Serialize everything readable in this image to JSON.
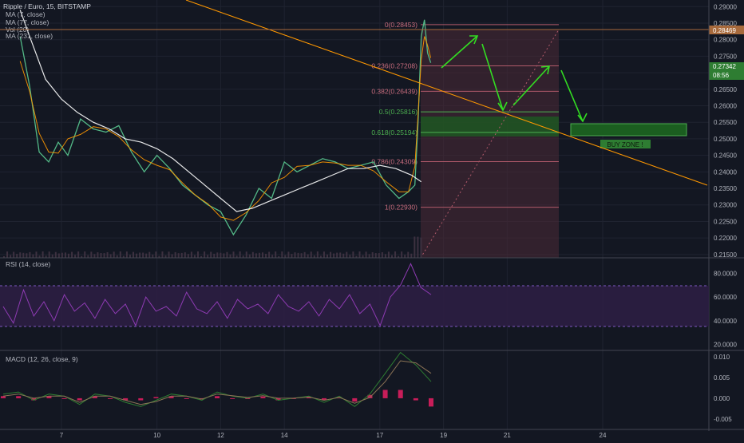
{
  "colors": {
    "bg": "#131722",
    "grid": "#2a2e39",
    "text": "#b2b5be",
    "candle_up": "#53b987",
    "candle_down": "#eb4d5c",
    "ma7": "#ff9800",
    "ma77": "#ffffff",
    "trendline": "#ff9800",
    "fib": "#b05a6a",
    "fib_green": "#4caf50",
    "fib_fill": "#4d2a36",
    "buy_zone": "#1b5e20",
    "arrow": "#33dd22",
    "rsi_line": "#8e3bb3",
    "rsi_band": "#2c1e42",
    "macd_line": "#2e7d32",
    "signal_line": "#8b7355",
    "hist": "#e91e63",
    "price_tag": "#a86a3c",
    "current_tag": "#2e7d32"
  },
  "main": {
    "legend": [
      "Ripple / Euro, 15, BITSTAMP",
      "MA (7, close)",
      "MA (77, close)",
      "Vol (20)",
      "MA (231, close)"
    ],
    "price_tag": "0.28469",
    "current_price": "0.27342",
    "countdown": "08:56",
    "buy_zone_label": "BUY ZONE !"
  },
  "rsi": {
    "label": "RSI (14, close)"
  },
  "macd": {
    "label": "MACD (12, 26, close, 9)"
  },
  "chart_data": [
    {
      "type": "line",
      "title": "Ripple / Euro, 15, BITSTAMP",
      "x_ticks": [
        "7",
        "10",
        "12",
        "14",
        "17",
        "19",
        "21",
        "24"
      ],
      "y_ticks": [
        "0.29000",
        "0.28500",
        "0.28000",
        "0.27500",
        "0.27000",
        "0.26500",
        "0.26000",
        "0.25500",
        "0.25000",
        "0.24500",
        "0.24000",
        "0.23500",
        "0.23000",
        "0.22500",
        "0.22000",
        "0.21500"
      ],
      "ylim": [
        0.214,
        0.292
      ],
      "series": [
        {
          "name": "price",
          "x": [
            5.7,
            6.0,
            6.3,
            6.6,
            6.9,
            7.2,
            7.6,
            8.0,
            8.4,
            8.8,
            9.2,
            9.6,
            10.0,
            10.4,
            10.8,
            11.2,
            11.6,
            12.0,
            12.4,
            12.8,
            13.2,
            13.6,
            14.0,
            14.4,
            14.8,
            15.2,
            15.6,
            16.0,
            16.4,
            16.8,
            17.2,
            17.6,
            17.9,
            18.1,
            18.2,
            18.3,
            18.4,
            18.5,
            18.6
          ],
          "y": [
            0.281,
            0.266,
            0.246,
            0.243,
            0.249,
            0.245,
            0.256,
            0.253,
            0.252,
            0.254,
            0.246,
            0.24,
            0.245,
            0.241,
            0.236,
            0.233,
            0.23,
            0.228,
            0.221,
            0.227,
            0.235,
            0.232,
            0.243,
            0.24,
            0.242,
            0.244,
            0.243,
            0.241,
            0.242,
            0.243,
            0.236,
            0.232,
            0.234,
            0.236,
            0.255,
            0.281,
            0.286,
            0.276,
            0.273
          ]
        },
        {
          "name": "MA (77, close)",
          "x": [
            5.7,
            6.0,
            6.5,
            7.0,
            7.5,
            8.0,
            8.5,
            9.0,
            9.5,
            10.0,
            10.5,
            11.0,
            11.5,
            12.0,
            12.5,
            13.0,
            13.5,
            14.0,
            14.5,
            15.0,
            15.5,
            16.0,
            16.5,
            17.0,
            17.5,
            18.0,
            18.3
          ],
          "y": [
            0.289,
            0.281,
            0.268,
            0.262,
            0.258,
            0.255,
            0.253,
            0.25,
            0.249,
            0.247,
            0.244,
            0.24,
            0.236,
            0.232,
            0.228,
            0.229,
            0.231,
            0.233,
            0.235,
            0.237,
            0.239,
            0.241,
            0.241,
            0.242,
            0.241,
            0.239,
            0.237
          ]
        }
      ],
      "fib_levels": [
        {
          "label": "0(0.28453)",
          "value": 0.28453
        },
        {
          "label": "0.236(0.27208)",
          "value": 0.27208
        },
        {
          "label": "0.382(0.26439)",
          "value": 0.26439
        },
        {
          "label": "0.5(0.25816)",
          "value": 0.25816
        },
        {
          "label": "0.618(0.25194)",
          "value": 0.25194
        },
        {
          "label": "0.786(0.24309)",
          "value": 0.24309
        },
        {
          "label": "1(0.22930)",
          "value": 0.2293
        }
      ]
    },
    {
      "type": "line",
      "title": "RSI (14, close)",
      "y_ticks": [
        "80.0000",
        "60.0000",
        "40.0000",
        "20.0000"
      ],
      "ylim": [
        15,
        93
      ],
      "bands": [
        70,
        30
      ],
      "series": [
        {
          "name": "RSI",
          "values": [
            52,
            38,
            66,
            44,
            56,
            40,
            62,
            48,
            55,
            42,
            58,
            46,
            54,
            36,
            60,
            48,
            52,
            44,
            64,
            50,
            46,
            56,
            42,
            58,
            50,
            54,
            46,
            62,
            52,
            48,
            56,
            44,
            58,
            50,
            62,
            46,
            54,
            36,
            60,
            70,
            88,
            68,
            62
          ]
        }
      ]
    },
    {
      "type": "line",
      "title": "MACD (12, 26, close, 9)",
      "y_ticks": [
        "0.010",
        "0.005",
        "0.000",
        "-0.005"
      ],
      "ylim": [
        -0.0075,
        0.0115
      ],
      "series": [
        {
          "name": "MACD",
          "values": [
            0.001,
            0.0015,
            -0.0005,
            0.001,
            0.0005,
            -0.0015,
            0.001,
            0.0005,
            -0.001,
            -0.002,
            -0.0005,
            0.001,
            0.0005,
            -0.0005,
            0.0015,
            0.0005,
            0.0,
            0.001,
            -0.0005,
            0.0,
            0.0005,
            -0.001,
            0.0005,
            -0.002,
            0.001,
            0.006,
            0.011,
            0.008,
            0.004
          ]
        },
        {
          "name": "Signal",
          "values": [
            0.0005,
            0.001,
            0.0,
            0.0005,
            0.0005,
            -0.001,
            0.0005,
            0.0005,
            -0.0005,
            -0.0015,
            -0.0008,
            0.0005,
            0.0005,
            -0.0002,
            0.001,
            0.0006,
            0.0002,
            0.0006,
            0.0,
            0.0,
            0.0003,
            -0.0005,
            0.0002,
            -0.0012,
            0.0002,
            0.004,
            0.009,
            0.0085,
            0.006
          ]
        }
      ]
    }
  ]
}
